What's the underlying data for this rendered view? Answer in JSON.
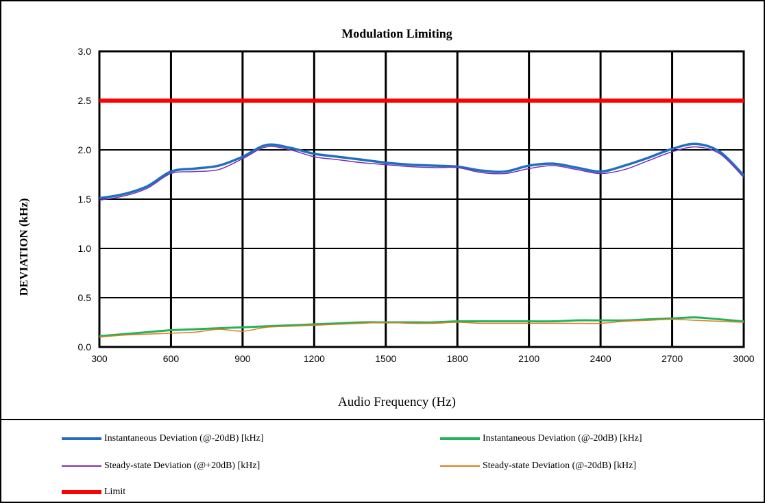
{
  "chart_data": {
    "type": "line",
    "title": "Modulation Limiting",
    "xlabel": "Audio Frequency (Hz)",
    "ylabel": "DEVIATION (kHz)",
    "xlim": [
      300,
      3000
    ],
    "ylim": [
      0.0,
      3.0
    ],
    "x_ticks": [
      "300",
      "600",
      "900",
      "1200",
      "1500",
      "1800",
      "2100",
      "2400",
      "2700",
      "3000"
    ],
    "y_ticks": [
      "0.0",
      "0.5",
      "1.0",
      "1.5",
      "2.0",
      "2.5",
      "3.0"
    ],
    "grid": true,
    "legend_position": "bottom",
    "series": [
      {
        "name": "Instantaneous Deviation (@-20dB) [kHz]",
        "color": "#1f6fc0",
        "width": 3.5,
        "x": [
          300,
          400,
          500,
          600,
          700,
          800,
          900,
          1000,
          1100,
          1200,
          1300,
          1400,
          1500,
          1600,
          1700,
          1800,
          1900,
          2000,
          2100,
          2200,
          2300,
          2400,
          2500,
          2600,
          2700,
          2800,
          2900,
          3000
        ],
        "y": [
          1.51,
          1.55,
          1.63,
          1.78,
          1.81,
          1.84,
          1.93,
          2.05,
          2.02,
          1.96,
          1.93,
          1.9,
          1.87,
          1.85,
          1.84,
          1.83,
          1.79,
          1.78,
          1.84,
          1.86,
          1.82,
          1.78,
          1.84,
          1.92,
          2.01,
          2.06,
          1.98,
          1.74
        ]
      },
      {
        "name": "Instantaneous Deviation (@-20dB) [kHz]",
        "color": "#22b35a",
        "width": 3,
        "x": [
          300,
          400,
          500,
          600,
          700,
          800,
          900,
          1000,
          1100,
          1200,
          1300,
          1400,
          1500,
          1600,
          1700,
          1800,
          1900,
          2000,
          2100,
          2200,
          2300,
          2400,
          2500,
          2600,
          2700,
          2800,
          2900,
          3000
        ],
        "y": [
          0.11,
          0.13,
          0.15,
          0.17,
          0.18,
          0.19,
          0.2,
          0.21,
          0.22,
          0.23,
          0.24,
          0.25,
          0.25,
          0.25,
          0.25,
          0.26,
          0.26,
          0.26,
          0.26,
          0.26,
          0.27,
          0.27,
          0.27,
          0.28,
          0.29,
          0.3,
          0.28,
          0.26
        ]
      },
      {
        "name": "Steady-state Deviation (@+20dB) [kHz]",
        "color": "#7b2fb8",
        "width": 1.5,
        "x": [
          300,
          400,
          500,
          600,
          700,
          800,
          900,
          1000,
          1100,
          1200,
          1300,
          1400,
          1500,
          1600,
          1700,
          1800,
          1900,
          2000,
          2100,
          2200,
          2300,
          2400,
          2500,
          2600,
          2700,
          2800,
          2900,
          3000
        ],
        "y": [
          1.49,
          1.53,
          1.61,
          1.76,
          1.78,
          1.8,
          1.91,
          2.03,
          2.0,
          1.93,
          1.9,
          1.87,
          1.85,
          1.83,
          1.82,
          1.82,
          1.77,
          1.76,
          1.81,
          1.84,
          1.8,
          1.76,
          1.8,
          1.89,
          1.98,
          2.03,
          1.96,
          1.72
        ]
      },
      {
        "name": "Steady-state Deviation (@-20dB) [kHz]",
        "color": "#e07b20",
        "width": 1.5,
        "x": [
          300,
          400,
          500,
          600,
          700,
          800,
          900,
          1000,
          1100,
          1200,
          1300,
          1400,
          1500,
          1600,
          1700,
          1800,
          1900,
          2000,
          2100,
          2200,
          2300,
          2400,
          2500,
          2600,
          2700,
          2800,
          2900,
          3000
        ],
        "y": [
          0.1,
          0.12,
          0.13,
          0.14,
          0.15,
          0.18,
          0.16,
          0.2,
          0.21,
          0.22,
          0.23,
          0.24,
          0.25,
          0.24,
          0.24,
          0.25,
          0.24,
          0.24,
          0.24,
          0.24,
          0.24,
          0.24,
          0.26,
          0.27,
          0.28,
          0.27,
          0.26,
          0.25
        ]
      },
      {
        "name": "Limit",
        "color": "#ff0000",
        "width": 6,
        "x": [
          300,
          3000
        ],
        "y": [
          2.5,
          2.5
        ]
      }
    ]
  }
}
